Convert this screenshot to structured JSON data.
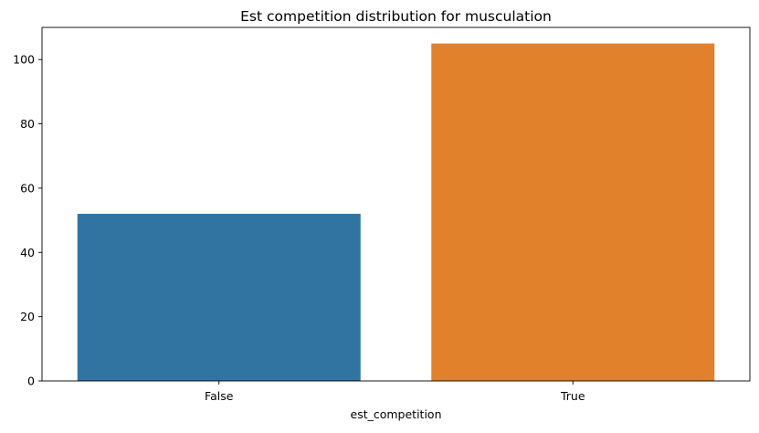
{
  "chart_data": {
    "type": "bar",
    "title": "Est competition distribution for musculation",
    "xlabel": "est_competition",
    "ylabel": "",
    "categories": [
      "False",
      "True"
    ],
    "values": [
      52,
      105
    ],
    "colors": [
      "#3274a1",
      "#e1812c"
    ],
    "ylim": [
      0,
      110
    ],
    "yticks": [
      0,
      20,
      40,
      60,
      80,
      100
    ],
    "grid": false,
    "legend": "none"
  }
}
